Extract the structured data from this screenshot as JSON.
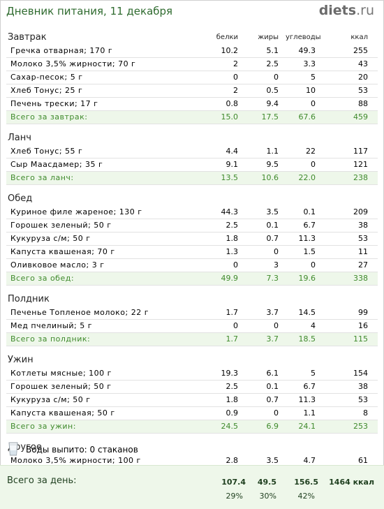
{
  "page_title": "Дневник питания, 11 декабря",
  "logo": {
    "main": "diets",
    "suffix": ".ru"
  },
  "columns": {
    "protein": "белки",
    "fat": "жиры",
    "carbs": "углеводы",
    "kcal": "ккал"
  },
  "meals": [
    {
      "name": "Завтрак",
      "items": [
        {
          "name": "Гречка отварная; 170 г",
          "protein": "10.2",
          "fat": "5.1",
          "carbs": "49.3",
          "kcal": "255"
        },
        {
          "name": "Молоко 3,5% жирности; 70 г",
          "protein": "2",
          "fat": "2.5",
          "carbs": "3.3",
          "kcal": "43"
        },
        {
          "name": "Сахар-песок; 5 г",
          "protein": "0",
          "fat": "0",
          "carbs": "5",
          "kcal": "20"
        },
        {
          "name": "Хлеб Тонус; 25 г",
          "protein": "2",
          "fat": "0.5",
          "carbs": "10",
          "kcal": "53"
        },
        {
          "name": "Печень трески; 17 г",
          "protein": "0.8",
          "fat": "9.4",
          "carbs": "0",
          "kcal": "88"
        }
      ],
      "total": {
        "name": "Всего за завтрак:",
        "protein": "15.0",
        "fat": "17.5",
        "carbs": "67.6",
        "kcal": "459"
      }
    },
    {
      "name": "Ланч",
      "items": [
        {
          "name": "Хлеб Тонус; 55 г",
          "protein": "4.4",
          "fat": "1.1",
          "carbs": "22",
          "kcal": "117"
        },
        {
          "name": "Сыр Маасдамер; 35 г",
          "protein": "9.1",
          "fat": "9.5",
          "carbs": "0",
          "kcal": "121"
        }
      ],
      "total": {
        "name": "Всего за ланч:",
        "protein": "13.5",
        "fat": "10.6",
        "carbs": "22.0",
        "kcal": "238"
      }
    },
    {
      "name": "Обед",
      "items": [
        {
          "name": "Куриное филе жареное; 130 г",
          "protein": "44.3",
          "fat": "3.5",
          "carbs": "0.1",
          "kcal": "209"
        },
        {
          "name": "Горошек зеленый; 50 г",
          "protein": "2.5",
          "fat": "0.1",
          "carbs": "6.7",
          "kcal": "38"
        },
        {
          "name": "Кукуруза с/м; 50 г",
          "protein": "1.8",
          "fat": "0.7",
          "carbs": "11.3",
          "kcal": "53"
        },
        {
          "name": "Капуста квашеная; 70 г",
          "protein": "1.3",
          "fat": "0",
          "carbs": "1.5",
          "kcal": "11"
        },
        {
          "name": "Оливковое масло; 3 г",
          "protein": "0",
          "fat": "3",
          "carbs": "0",
          "kcal": "27"
        }
      ],
      "total": {
        "name": "Всего за обед:",
        "protein": "49.9",
        "fat": "7.3",
        "carbs": "19.6",
        "kcal": "338"
      }
    },
    {
      "name": "Полдник",
      "items": [
        {
          "name": "Печенье Топленое молоко; 22 г",
          "protein": "1.7",
          "fat": "3.7",
          "carbs": "14.5",
          "kcal": "99"
        },
        {
          "name": "Мед пчелиный; 5 г",
          "protein": "0",
          "fat": "0",
          "carbs": "4",
          "kcal": "16"
        }
      ],
      "total": {
        "name": "Всего за полдник:",
        "protein": "1.7",
        "fat": "3.7",
        "carbs": "18.5",
        "kcal": "115"
      }
    },
    {
      "name": "Ужин",
      "items": [
        {
          "name": "Котлеты мясные; 100 г",
          "protein": "19.3",
          "fat": "6.1",
          "carbs": "5",
          "kcal": "154"
        },
        {
          "name": "Горошек зеленый; 50 г",
          "protein": "2.5",
          "fat": "0.1",
          "carbs": "6.7",
          "kcal": "38"
        },
        {
          "name": "Кукуруза с/м; 50 г",
          "protein": "1.8",
          "fat": "0.7",
          "carbs": "11.3",
          "kcal": "53"
        },
        {
          "name": "Капуста квашеная; 50 г",
          "protein": "0.9",
          "fat": "0",
          "carbs": "1.1",
          "kcal": "8"
        }
      ],
      "total": {
        "name": "Всего за ужин:",
        "protein": "24.5",
        "fat": "6.9",
        "carbs": "24.1",
        "kcal": "253"
      }
    },
    {
      "name": "Другое",
      "items": [
        {
          "name": "Молоко 3,5% жирности; 100 г",
          "protein": "2.8",
          "fat": "3.5",
          "carbs": "4.7",
          "kcal": "61"
        }
      ],
      "total": null
    }
  ],
  "water": {
    "icon": "glass-icon",
    "text": "Воды выпито: 0 стаканов"
  },
  "day_total": {
    "label": "Всего за день:",
    "protein": "107.4",
    "fat": "49.5",
    "carbs": "156.5",
    "kcal": "1464 ккал",
    "protein_pct": "29%",
    "fat_pct": "30%",
    "carbs_pct": "42%"
  },
  "colors": {
    "title_green": "#2f6b2f",
    "total_green": "#3f8a2c",
    "total_bg": "#eef7ea",
    "logo_gray": "#6b6b6b"
  }
}
